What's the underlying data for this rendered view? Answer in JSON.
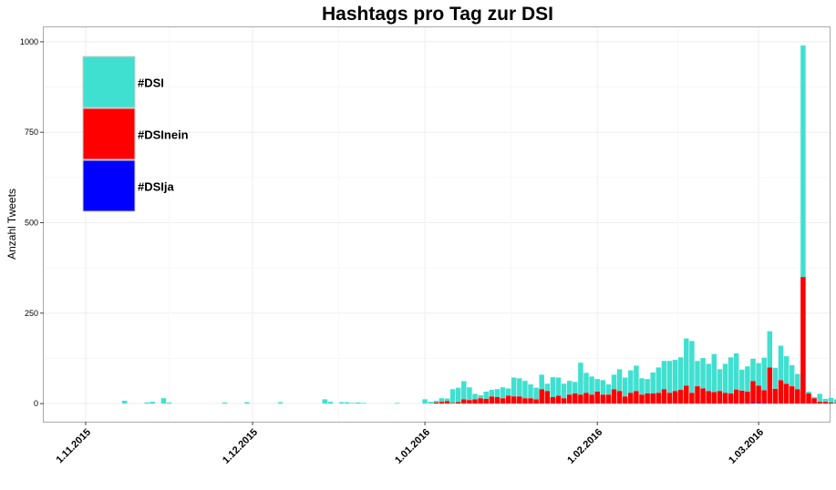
{
  "chart_data": {
    "type": "bar",
    "stacked": true,
    "title": "Hashtags pro Tag zur DSI",
    "xlabel": "",
    "ylabel": "Anzahl Tweets",
    "ylim": [
      -50,
      1040
    ],
    "yticks": [
      0,
      250,
      500,
      750,
      1000
    ],
    "x_start": "2015-10-30",
    "xticks": [
      {
        "label": "1.11.2015",
        "date": "2015-11-01"
      },
      {
        "label": "1.12.2015",
        "date": "2015-12-01"
      },
      {
        "label": "1.01.2016",
        "date": "2016-01-01"
      },
      {
        "label": "1.02.2016",
        "date": "2016-02-01"
      },
      {
        "label": "1.03.2016",
        "date": "2016-03-01"
      }
    ],
    "grid": true,
    "legend_position": "top-left",
    "colors": {
      "#DSI": "#40E0D0",
      "#DSInein": "#FF0000",
      "#DSIja": "#0000FF"
    },
    "series": [
      {
        "name": "#DSIja",
        "values": [
          0,
          0,
          0,
          0,
          0,
          0,
          0,
          0,
          0,
          0,
          0,
          0,
          0,
          0,
          0,
          0,
          0,
          0,
          0,
          0,
          0,
          0,
          0,
          0,
          0,
          0,
          0,
          0,
          0,
          0,
          0,
          0,
          0,
          0,
          0,
          0,
          0,
          0,
          0,
          0,
          0,
          0,
          0,
          0,
          0,
          0,
          0,
          0,
          0,
          0,
          0,
          0,
          0,
          0,
          0,
          0,
          0,
          0,
          0,
          0,
          0,
          0,
          0,
          0,
          0,
          0,
          0,
          0,
          0,
          0,
          0,
          0,
          0,
          0,
          0,
          0,
          0,
          0,
          0,
          0,
          0,
          0,
          0,
          0,
          0,
          0,
          0,
          0,
          0,
          0,
          0,
          0,
          0,
          0,
          0,
          0,
          0,
          0,
          0,
          0,
          0,
          0,
          0,
          0,
          0,
          0,
          0,
          0,
          0,
          0,
          0,
          0,
          0,
          0,
          0,
          0,
          0,
          0,
          0,
          1,
          1,
          1,
          2,
          2,
          1,
          0,
          1,
          0,
          0,
          0,
          0,
          0,
          0,
          0,
          0,
          0,
          0,
          0,
          0,
          0,
          0,
          0
        ]
      },
      {
        "name": "#DSInein",
        "values": [
          0,
          0,
          0,
          0,
          0,
          0,
          0,
          0,
          0,
          0,
          0,
          0,
          0,
          0,
          0,
          0,
          0,
          0,
          0,
          0,
          0,
          0,
          0,
          0,
          0,
          0,
          0,
          0,
          0,
          0,
          0,
          0,
          0,
          0,
          0,
          0,
          0,
          0,
          0,
          0,
          0,
          0,
          0,
          0,
          0,
          0,
          0,
          0,
          0,
          0,
          0,
          0,
          0,
          0,
          0,
          0,
          0,
          0,
          0,
          0,
          0,
          0,
          0,
          0,
          0,
          3,
          5,
          7,
          2,
          4,
          12,
          10,
          12,
          15,
          13,
          20,
          18,
          15,
          22,
          20,
          20,
          15,
          15,
          12,
          40,
          35,
          18,
          22,
          15,
          25,
          28,
          25,
          30,
          25,
          33,
          25,
          25,
          40,
          35,
          20,
          30,
          35,
          25,
          28,
          28,
          30,
          40,
          30,
          35,
          38,
          50,
          30,
          48,
          42,
          35,
          32,
          35,
          30,
          28,
          38,
          35,
          32,
          60,
          48,
          36,
          100,
          40,
          65,
          55,
          48,
          40,
          350,
          28,
          15,
          5,
          5,
          3,
          2,
          2,
          3
        ]
      },
      {
        "name": "#DSI",
        "values": [
          0,
          0,
          0,
          0,
          0,
          0,
          0,
          0,
          0,
          8,
          0,
          0,
          0,
          3,
          5,
          0,
          15,
          3,
          0,
          0,
          0,
          0,
          0,
          0,
          0,
          0,
          0,
          3,
          0,
          0,
          0,
          4,
          0,
          0,
          0,
          0,
          0,
          4,
          0,
          0,
          0,
          0,
          0,
          0,
          0,
          12,
          5,
          0,
          4,
          4,
          2,
          3,
          2,
          0,
          0,
          0,
          0,
          0,
          2,
          0,
          0,
          0,
          0,
          12,
          5,
          5,
          10,
          7,
          38,
          40,
          50,
          35,
          15,
          8,
          20,
          18,
          22,
          30,
          20,
          52,
          50,
          48,
          38,
          32,
          40,
          20,
          55,
          50,
          40,
          38,
          32,
          88,
          55,
          50,
          35,
          40,
          28,
          40,
          60,
          52,
          62,
          70,
          45,
          40,
          58,
          70,
          78,
          88,
          86,
          90,
          130,
          143,
          70,
          84,
          75,
          105,
          60,
          80,
          100,
          100,
          58,
          70,
          62,
          62,
          90,
          100,
          58,
          95,
          76,
          58,
          42,
          640,
          5,
          3,
          22,
          8,
          13,
          10,
          9,
          14
        ]
      }
    ]
  }
}
